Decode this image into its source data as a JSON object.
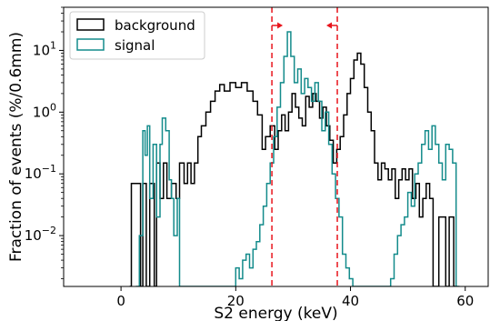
{
  "chart_data": {
    "type": "histogram",
    "title": "",
    "xlabel": "S2 energy (keV)",
    "ylabel": "Fraction of events (%/0.6mm)",
    "xlim": [
      -10,
      64
    ],
    "ylim": [
      0.0015,
      50
    ],
    "yscale": "log",
    "grid": false,
    "legend_position": "top-left",
    "xticks": [
      0,
      20,
      40,
      60
    ],
    "yticks": [
      {
        "value": 0.01,
        "base": "10",
        "exp": "−2"
      },
      {
        "value": 0.1,
        "base": "10",
        "exp": "−1"
      },
      {
        "value": 1,
        "base": "10",
        "exp": "0"
      },
      {
        "value": 10,
        "base": "10",
        "exp": "1"
      }
    ],
    "bin_width": 0.6,
    "vlines": [
      {
        "x": 26.3,
        "color": "#e8141c",
        "style": "dashed"
      },
      {
        "x": 37.7,
        "color": "#e8141c",
        "style": "dashed"
      }
    ],
    "arrows": [
      {
        "x": 26.3,
        "direction": "right",
        "color": "#e8141c"
      },
      {
        "x": 37.7,
        "direction": "left",
        "color": "#e8141c"
      }
    ],
    "series": [
      {
        "name": "background",
        "color": "#000000",
        "points": [
          [
            1.5,
            0.0015
          ],
          [
            1.8,
            0.07
          ],
          [
            3.4,
            0.0015
          ],
          [
            3.8,
            0.07
          ],
          [
            4.4,
            0.0015
          ],
          [
            5.0,
            0.07
          ],
          [
            5.8,
            0.0015
          ],
          [
            6.2,
            0.15
          ],
          [
            6.8,
            0.04
          ],
          [
            7.4,
            0.15
          ],
          [
            8.0,
            0.04
          ],
          [
            8.8,
            0.07
          ],
          [
            9.6,
            0.04
          ],
          [
            10.2,
            0.15
          ],
          [
            11.0,
            0.07
          ],
          [
            11.6,
            0.15
          ],
          [
            12.2,
            0.07
          ],
          [
            12.8,
            0.15
          ],
          [
            13.4,
            0.4
          ],
          [
            14.0,
            0.6
          ],
          [
            14.8,
            1.0
          ],
          [
            15.6,
            1.5
          ],
          [
            16.4,
            2.2
          ],
          [
            17.2,
            2.8
          ],
          [
            18.0,
            2.2
          ],
          [
            19.0,
            3.0
          ],
          [
            20.0,
            2.5
          ],
          [
            21.0,
            3.0
          ],
          [
            22.0,
            2.2
          ],
          [
            23.0,
            1.5
          ],
          [
            23.8,
            0.9
          ],
          [
            24.6,
            0.25
          ],
          [
            25.2,
            0.4
          ],
          [
            26.0,
            0.6
          ],
          [
            26.8,
            0.25
          ],
          [
            27.4,
            0.5
          ],
          [
            28.0,
            0.9
          ],
          [
            28.6,
            0.5
          ],
          [
            29.2,
            1.0
          ],
          [
            29.8,
            2.0
          ],
          [
            30.4,
            1.2
          ],
          [
            31.0,
            0.8
          ],
          [
            31.6,
            0.6
          ],
          [
            32.2,
            1.8
          ],
          [
            32.8,
            1.2
          ],
          [
            33.4,
            2.0
          ],
          [
            34.0,
            1.5
          ],
          [
            34.6,
            0.8
          ],
          [
            35.2,
            1.2
          ],
          [
            35.8,
            0.6
          ],
          [
            36.4,
            0.35
          ],
          [
            37.0,
            0.15
          ],
          [
            37.6,
            0.25
          ],
          [
            38.2,
            0.4
          ],
          [
            38.8,
            0.9
          ],
          [
            39.4,
            2.0
          ],
          [
            40.0,
            3.5
          ],
          [
            40.6,
            7.0
          ],
          [
            41.2,
            9.0
          ],
          [
            41.8,
            6.0
          ],
          [
            42.4,
            2.5
          ],
          [
            43.0,
            1.0
          ],
          [
            43.6,
            0.5
          ],
          [
            44.2,
            0.15
          ],
          [
            44.8,
            0.08
          ],
          [
            45.4,
            0.15
          ],
          [
            46.0,
            0.12
          ],
          [
            46.6,
            0.08
          ],
          [
            47.2,
            0.12
          ],
          [
            47.8,
            0.04
          ],
          [
            48.4,
            0.08
          ],
          [
            49.0,
            0.12
          ],
          [
            49.6,
            0.08
          ],
          [
            50.2,
            0.12
          ],
          [
            50.8,
            0.04
          ],
          [
            51.4,
            0.07
          ],
          [
            52.0,
            0.02
          ],
          [
            52.6,
            0.04
          ],
          [
            53.2,
            0.07
          ],
          [
            53.8,
            0.04
          ],
          [
            54.4,
            0.0015
          ],
          [
            55.4,
            0.02
          ],
          [
            56.6,
            0.0015
          ],
          [
            57.2,
            0.02
          ],
          [
            58.0,
            0.0015
          ]
        ]
      },
      {
        "name": "signal",
        "color": "#138b8b",
        "points": [
          [
            2.6,
            0.0015
          ],
          [
            3.2,
            0.01
          ],
          [
            3.8,
            0.5
          ],
          [
            4.2,
            0.2
          ],
          [
            4.6,
            0.6
          ],
          [
            5.0,
            0.04
          ],
          [
            5.6,
            0.3
          ],
          [
            6.2,
            0.02
          ],
          [
            6.8,
            0.3
          ],
          [
            7.2,
            0.8
          ],
          [
            7.8,
            0.5
          ],
          [
            8.4,
            0.08
          ],
          [
            8.8,
            0.04
          ],
          [
            9.2,
            0.01
          ],
          [
            9.8,
            0.04
          ],
          [
            10.2,
            0.0015
          ],
          [
            20.0,
            0.003
          ],
          [
            20.6,
            0.002
          ],
          [
            21.2,
            0.004
          ],
          [
            21.8,
            0.005
          ],
          [
            22.4,
            0.003
          ],
          [
            23.0,
            0.006
          ],
          [
            23.6,
            0.008
          ],
          [
            24.2,
            0.015
          ],
          [
            24.8,
            0.03
          ],
          [
            25.4,
            0.07
          ],
          [
            26.0,
            0.15
          ],
          [
            26.6,
            0.4
          ],
          [
            27.2,
            1.2
          ],
          [
            27.8,
            3.0
          ],
          [
            28.4,
            8.0
          ],
          [
            29.0,
            20.0
          ],
          [
            29.6,
            8.0
          ],
          [
            30.2,
            3.0
          ],
          [
            30.8,
            5.0
          ],
          [
            31.4,
            2.0
          ],
          [
            32.0,
            3.5
          ],
          [
            32.6,
            2.5
          ],
          [
            33.2,
            1.5
          ],
          [
            33.8,
            3.0
          ],
          [
            34.4,
            1.5
          ],
          [
            35.0,
            0.5
          ],
          [
            35.6,
            1.0
          ],
          [
            36.2,
            0.3
          ],
          [
            36.8,
            0.1
          ],
          [
            37.4,
            0.04
          ],
          [
            38.0,
            0.02
          ],
          [
            38.6,
            0.005
          ],
          [
            39.2,
            0.003
          ],
          [
            39.8,
            0.002
          ],
          [
            40.4,
            0.0015
          ],
          [
            47.0,
            0.002
          ],
          [
            47.6,
            0.005
          ],
          [
            48.2,
            0.01
          ],
          [
            48.8,
            0.015
          ],
          [
            49.4,
            0.02
          ],
          [
            50.0,
            0.05
          ],
          [
            50.6,
            0.03
          ],
          [
            51.2,
            0.1
          ],
          [
            51.8,
            0.15
          ],
          [
            52.4,
            0.3
          ],
          [
            53.0,
            0.5
          ],
          [
            53.6,
            0.25
          ],
          [
            54.2,
            0.6
          ],
          [
            54.8,
            0.3
          ],
          [
            55.4,
            0.15
          ],
          [
            56.0,
            0.08
          ],
          [
            56.6,
            0.3
          ],
          [
            57.2,
            0.25
          ],
          [
            57.8,
            0.15
          ],
          [
            58.4,
            0.0015
          ]
        ]
      }
    ]
  }
}
